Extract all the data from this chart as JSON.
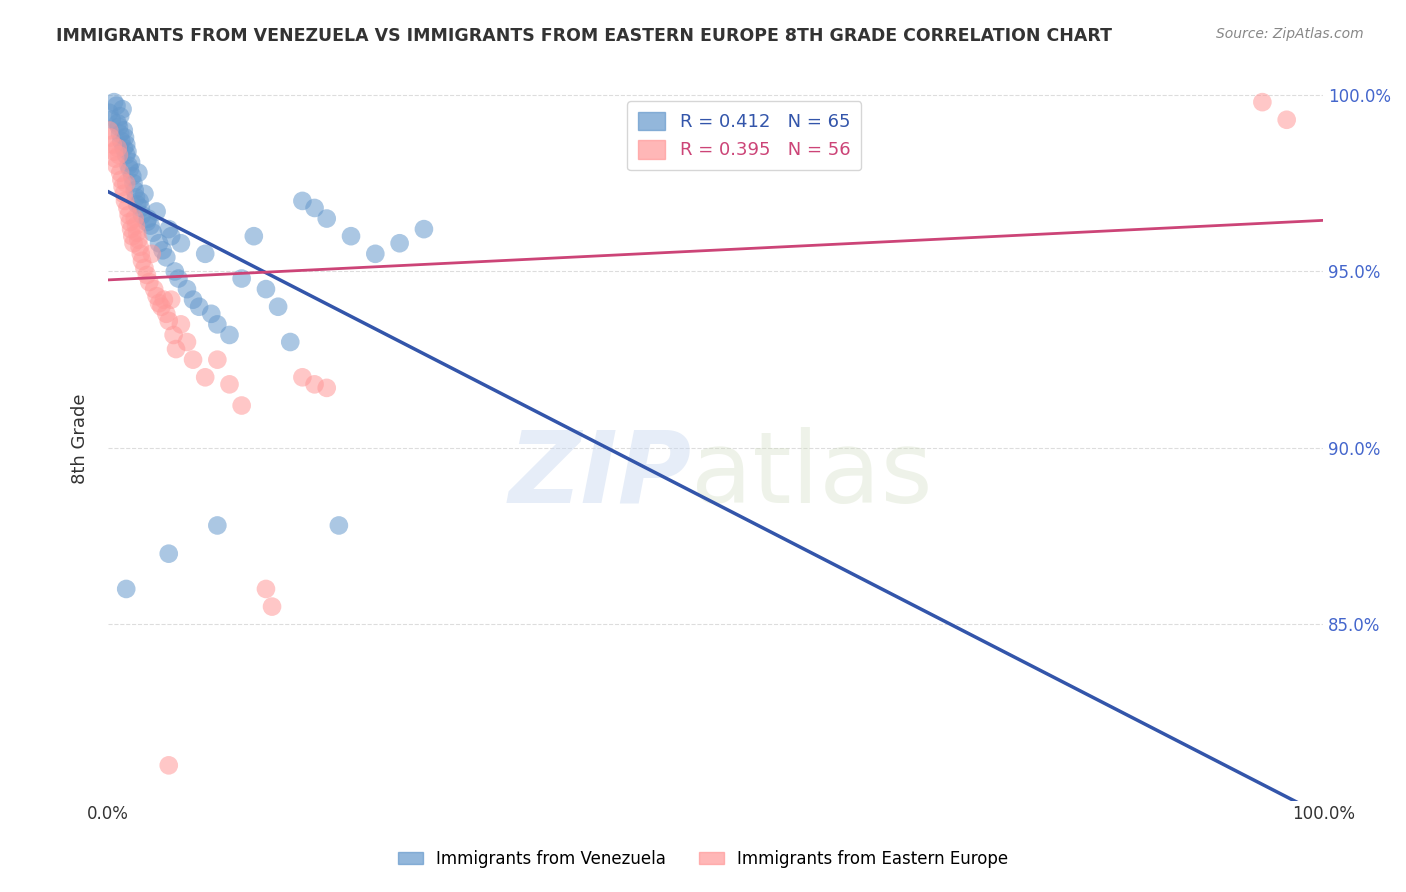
{
  "title": "IMMIGRANTS FROM VENEZUELA VS IMMIGRANTS FROM EASTERN EUROPE 8TH GRADE CORRELATION CHART",
  "source": "Source: ZipAtlas.com",
  "ylabel": "8th Grade",
  "xlim": [
    0.0,
    1.0
  ],
  "ylim": [
    0.8,
    1.005
  ],
  "y_tick_labels": [
    "85.0%",
    "90.0%",
    "95.0%",
    "100.0%"
  ],
  "y_ticks": [
    0.85,
    0.9,
    0.95,
    1.0
  ],
  "blue_R": 0.412,
  "blue_N": 65,
  "pink_R": 0.395,
  "pink_N": 56,
  "blue_color": "#6699CC",
  "pink_color": "#FF9999",
  "blue_line_color": "#3355AA",
  "pink_line_color": "#CC4477",
  "legend_label_blue": "Immigrants from Venezuela",
  "legend_label_pink": "Immigrants from Eastern Europe",
  "background_color": "#FFFFFF",
  "grid_color": "#DDDDDD",
  "axis_label_color": "#4466CC",
  "blue_scatter": [
    [
      0.001,
      0.995
    ],
    [
      0.003,
      0.993
    ],
    [
      0.005,
      0.998
    ],
    [
      0.007,
      0.997
    ],
    [
      0.008,
      0.992
    ],
    [
      0.009,
      0.991
    ],
    [
      0.01,
      0.994
    ],
    [
      0.01,
      0.989
    ],
    [
      0.011,
      0.987
    ],
    [
      0.012,
      0.996
    ],
    [
      0.013,
      0.985
    ],
    [
      0.013,
      0.99
    ],
    [
      0.014,
      0.988
    ],
    [
      0.015,
      0.983
    ],
    [
      0.015,
      0.986
    ],
    [
      0.016,
      0.984
    ],
    [
      0.017,
      0.98
    ],
    [
      0.018,
      0.979
    ],
    [
      0.019,
      0.981
    ],
    [
      0.02,
      0.977
    ],
    [
      0.021,
      0.975
    ],
    [
      0.022,
      0.973
    ],
    [
      0.023,
      0.971
    ],
    [
      0.024,
      0.969
    ],
    [
      0.025,
      0.978
    ],
    [
      0.026,
      0.97
    ],
    [
      0.027,
      0.968
    ],
    [
      0.028,
      0.966
    ],
    [
      0.03,
      0.972
    ],
    [
      0.032,
      0.964
    ],
    [
      0.033,
      0.965
    ],
    [
      0.035,
      0.963
    ],
    [
      0.037,
      0.961
    ],
    [
      0.04,
      0.967
    ],
    [
      0.042,
      0.958
    ],
    [
      0.045,
      0.956
    ],
    [
      0.048,
      0.954
    ],
    [
      0.05,
      0.962
    ],
    [
      0.052,
      0.96
    ],
    [
      0.055,
      0.95
    ],
    [
      0.058,
      0.948
    ],
    [
      0.06,
      0.958
    ],
    [
      0.065,
      0.945
    ],
    [
      0.07,
      0.942
    ],
    [
      0.075,
      0.94
    ],
    [
      0.08,
      0.955
    ],
    [
      0.085,
      0.938
    ],
    [
      0.09,
      0.935
    ],
    [
      0.1,
      0.932
    ],
    [
      0.11,
      0.948
    ],
    [
      0.12,
      0.96
    ],
    [
      0.13,
      0.945
    ],
    [
      0.14,
      0.94
    ],
    [
      0.15,
      0.93
    ],
    [
      0.16,
      0.97
    ],
    [
      0.17,
      0.968
    ],
    [
      0.18,
      0.965
    ],
    [
      0.2,
      0.96
    ],
    [
      0.22,
      0.955
    ],
    [
      0.24,
      0.958
    ],
    [
      0.26,
      0.962
    ],
    [
      0.05,
      0.87
    ],
    [
      0.015,
      0.86
    ],
    [
      0.09,
      0.878
    ],
    [
      0.19,
      0.878
    ]
  ],
  "pink_scatter": [
    [
      0.001,
      0.99
    ],
    [
      0.002,
      0.988
    ],
    [
      0.004,
      0.986
    ],
    [
      0.005,
      0.984
    ],
    [
      0.006,
      0.982
    ],
    [
      0.007,
      0.98
    ],
    [
      0.008,
      0.985
    ],
    [
      0.009,
      0.983
    ],
    [
      0.01,
      0.978
    ],
    [
      0.011,
      0.976
    ],
    [
      0.012,
      0.974
    ],
    [
      0.013,
      0.972
    ],
    [
      0.014,
      0.97
    ],
    [
      0.015,
      0.975
    ],
    [
      0.016,
      0.968
    ],
    [
      0.017,
      0.966
    ],
    [
      0.018,
      0.964
    ],
    [
      0.019,
      0.962
    ],
    [
      0.02,
      0.96
    ],
    [
      0.021,
      0.958
    ],
    [
      0.022,
      0.965
    ],
    [
      0.023,
      0.963
    ],
    [
      0.024,
      0.961
    ],
    [
      0.025,
      0.959
    ],
    [
      0.026,
      0.957
    ],
    [
      0.027,
      0.955
    ],
    [
      0.028,
      0.953
    ],
    [
      0.03,
      0.951
    ],
    [
      0.032,
      0.949
    ],
    [
      0.034,
      0.947
    ],
    [
      0.036,
      0.955
    ],
    [
      0.038,
      0.945
    ],
    [
      0.04,
      0.943
    ],
    [
      0.042,
      0.941
    ],
    [
      0.044,
      0.94
    ],
    [
      0.046,
      0.942
    ],
    [
      0.048,
      0.938
    ],
    [
      0.05,
      0.936
    ],
    [
      0.052,
      0.942
    ],
    [
      0.054,
      0.932
    ],
    [
      0.056,
      0.928
    ],
    [
      0.06,
      0.935
    ],
    [
      0.065,
      0.93
    ],
    [
      0.07,
      0.925
    ],
    [
      0.08,
      0.92
    ],
    [
      0.09,
      0.925
    ],
    [
      0.1,
      0.918
    ],
    [
      0.11,
      0.912
    ],
    [
      0.16,
      0.92
    ],
    [
      0.17,
      0.918
    ],
    [
      0.18,
      0.917
    ],
    [
      0.95,
      0.998
    ],
    [
      0.97,
      0.993
    ],
    [
      0.05,
      0.81
    ],
    [
      0.13,
      0.86
    ],
    [
      0.135,
      0.855
    ]
  ]
}
